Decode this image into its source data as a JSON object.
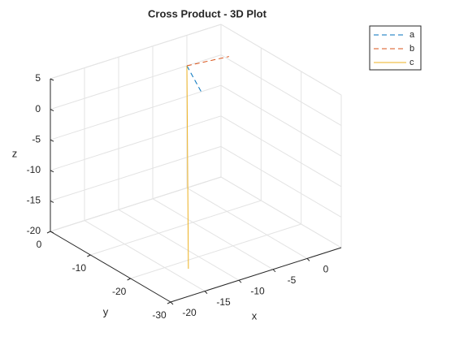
{
  "chart_data": {
    "type": "line3d",
    "title": "Cross Product - 3D Plot",
    "xlabel": "x",
    "ylabel": "y",
    "zlabel": "z",
    "xlim": [
      -20,
      5
    ],
    "xticks": [
      -20,
      -15,
      -10,
      -5,
      0
    ],
    "ylim": [
      -30,
      0
    ],
    "yticks": [
      -30,
      -20,
      -10,
      0
    ],
    "zlim": [
      -20,
      5
    ],
    "zticks": [
      -20,
      -15,
      -10,
      -5,
      0,
      5
    ],
    "grid": true,
    "legend": "outside-top-right",
    "series": [
      {
        "name": "a",
        "color": "#0072BD",
        "dashed": true,
        "x": [
          0,
          1
        ],
        "y": [
          0,
          -2
        ],
        "z": [
          0,
          -4
        ]
      },
      {
        "name": "b",
        "color": "#D95319",
        "dashed": true,
        "x": [
          0,
          5
        ],
        "y": [
          0,
          -2
        ],
        "z": [
          0,
          0.5
        ]
      },
      {
        "name": "c",
        "color": "#EDB120",
        "dashed": false,
        "x": [
          0,
          -8
        ],
        "y": [
          0,
          -14
        ],
        "z": [
          0,
          -25
        ]
      }
    ]
  }
}
